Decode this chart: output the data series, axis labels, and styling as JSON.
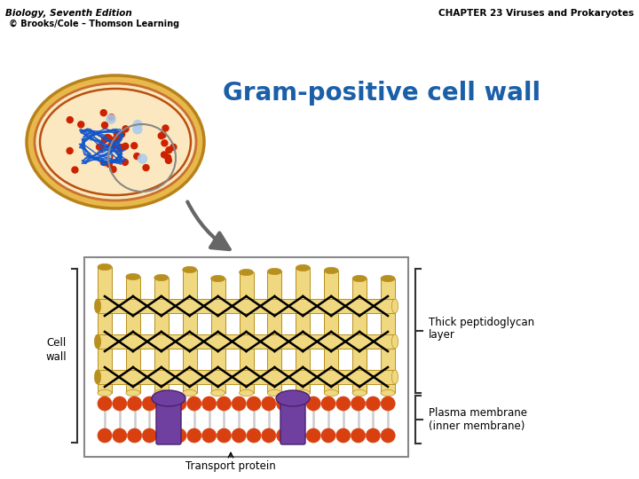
{
  "title_left": "Biology, Seventh Edition",
  "title_right": "CHAPTER 23 Viruses and Prokaryotes",
  "copyright": "© Brooks/Cole – Thomson Learning",
  "main_title": "Gram-positive cell wall",
  "main_title_color": "#1a5fa8",
  "label_cell_wall": "Cell\nwall",
  "label_peptidoglycan": "Thick peptidoglycan\nlayer",
  "label_plasma": "Plasma membrane\n(inner membrane)",
  "label_transport": "Transport protein",
  "bg_color": "#ffffff",
  "bact_outer_color": "#e8b84b",
  "bact_outer_edge": "#b8821a",
  "bact_inner_color": "#fce8c0",
  "bact_inner_edge": "#c87030",
  "bact_membrane_edge": "#b85010",
  "ribosome_color": "#cc2200",
  "dna_color": "#1155cc",
  "blue_dot_color": "#aaccee",
  "peptidoglycan_color": "#f0d880",
  "peptidoglycan_edge": "#b89020",
  "orange_sphere_color": "#d94010",
  "orange_sphere_edge": "#aa2200",
  "phospholipid_tail_color": "#cccccc",
  "transport_protein_color": "#7040a0",
  "transport_protein_edge": "#4a2070",
  "box_edge_color": "#888888",
  "arrow_color": "#666666",
  "bracket_color": "#333333",
  "label_color": "#000000"
}
